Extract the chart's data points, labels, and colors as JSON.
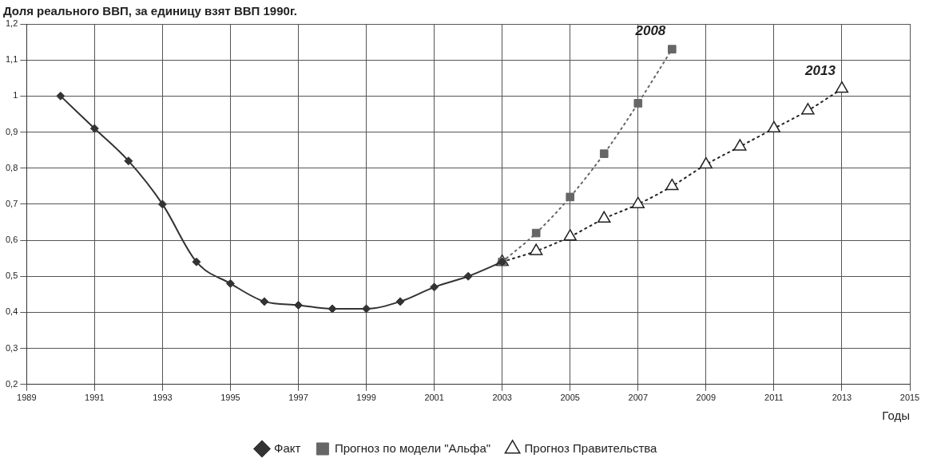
{
  "chart_data": {
    "type": "line",
    "title": "Доля реального ВВП, за единицу взят ВВП 1990г.",
    "xlabel": "Годы",
    "xlim": [
      1989,
      2015
    ],
    "xticks": [
      1989,
      1991,
      1993,
      1995,
      1997,
      1999,
      2001,
      2003,
      2005,
      2007,
      2009,
      2011,
      2013,
      2015
    ],
    "ylim": [
      0.2,
      1.2
    ],
    "yticks": [
      {
        "value": 0.2,
        "label": "0,2"
      },
      {
        "value": 0.3,
        "label": "0,3"
      },
      {
        "value": 0.4,
        "label": "0,4"
      },
      {
        "value": 0.5,
        "label": "0,5"
      },
      {
        "value": 0.6,
        "label": "0,6"
      },
      {
        "value": 0.7,
        "label": "0,7"
      },
      {
        "value": 0.8,
        "label": "0,8"
      },
      {
        "value": 0.9,
        "label": "0,9"
      },
      1,
      {
        "value": 1.1,
        "label": "1,1"
      },
      {
        "value": 1.2,
        "label": "1,2"
      }
    ],
    "grid": true,
    "legend": "bottom",
    "series": [
      {
        "name": "Факт",
        "color": "#333333",
        "marker": "diamond",
        "line_style": "solid",
        "x": [
          1990,
          1991,
          1992,
          1993,
          1994,
          1995,
          1996,
          1997,
          1998,
          1999,
          2000,
          2001,
          2002,
          2003
        ],
        "values": [
          1.0,
          0.91,
          0.82,
          0.7,
          0.54,
          0.48,
          0.43,
          0.42,
          0.41,
          0.41,
          0.43,
          0.47,
          0.5,
          0.54
        ]
      },
      {
        "name": "Прогноз по модели \"Альфа\"",
        "color": "#666666",
        "marker": "square",
        "line_style": "dotted",
        "x": [
          2003,
          2004,
          2005,
          2006,
          2007,
          2008
        ],
        "values": [
          0.54,
          0.62,
          0.72,
          0.84,
          0.98,
          1.13
        ]
      },
      {
        "name": "Прогноз Правительства",
        "color": "#222222",
        "marker": "triangle",
        "line_style": "dotted",
        "x": [
          2003,
          2004,
          2005,
          2006,
          2007,
          2008,
          2009,
          2010,
          2011,
          2012,
          2013
        ],
        "values": [
          0.54,
          0.57,
          0.61,
          0.66,
          0.7,
          0.75,
          0.81,
          0.86,
          0.91,
          0.96,
          1.02
        ]
      }
    ],
    "annotations": [
      {
        "text": "2008",
        "x": 2008,
        "y": 1.13
      },
      {
        "text": "2013",
        "x": 2013,
        "y": 1.02
      }
    ]
  }
}
